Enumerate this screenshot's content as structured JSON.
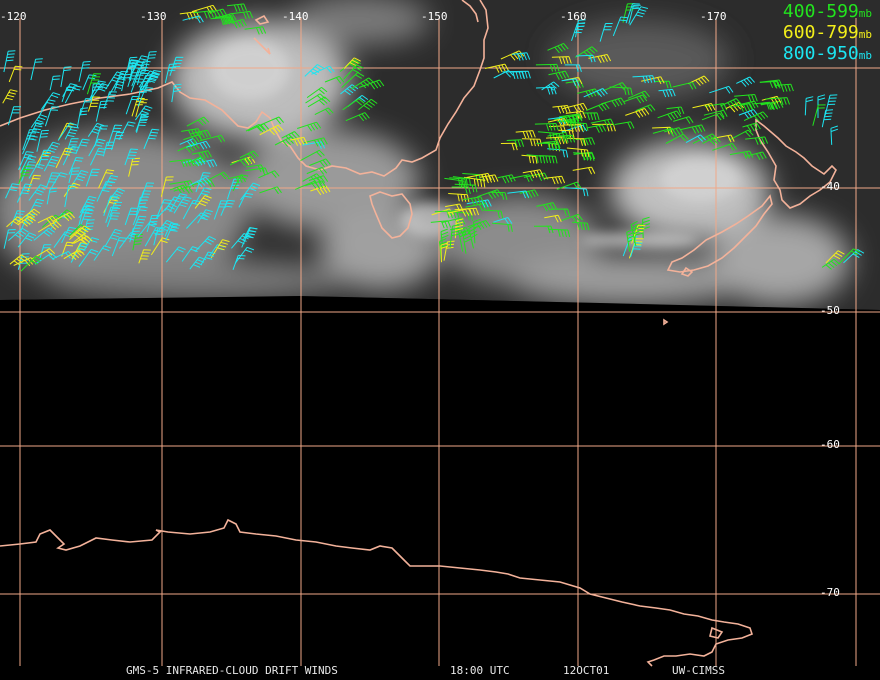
{
  "map": {
    "lon_labels": [
      "-120",
      "-130",
      "-140",
      "-150",
      "-160",
      "-170"
    ],
    "lat_labels": [
      "-40",
      "-50",
      "-60",
      "-70"
    ],
    "land_color": "#f3b29a",
    "grid_color": "#f0a888"
  },
  "legend": {
    "items": [
      {
        "range": "400-599",
        "unit": "mb",
        "color": "#22e41e"
      },
      {
        "range": "600-799",
        "unit": "mb",
        "color": "#f2ee1a"
      },
      {
        "range": "800-950",
        "unit": "mb",
        "color": "#1ce6f2"
      }
    ]
  },
  "footer": {
    "product": "GMS-5 INFRARED-CLOUD DRIFT WINDS",
    "time": "18:00 UTC",
    "date": "12OCT01",
    "source": "UW-CIMSS"
  }
}
